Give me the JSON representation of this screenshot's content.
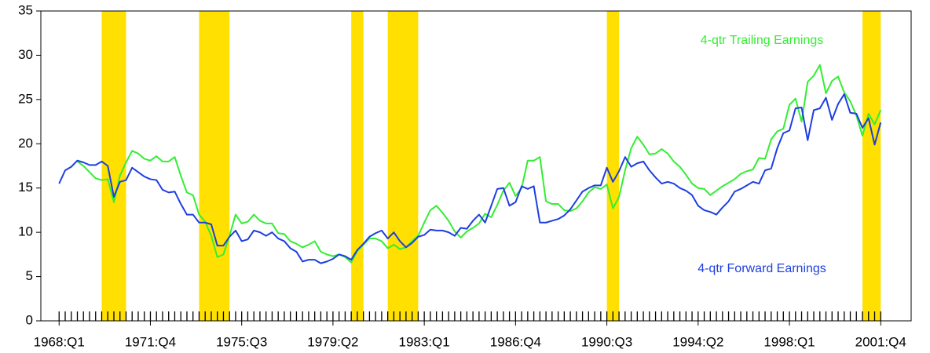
{
  "chart_data": {
    "type": "line",
    "x": [
      1968,
      1968.25,
      1968.5,
      1968.75,
      1969,
      1969.25,
      1969.5,
      1969.75,
      1970,
      1970.25,
      1970.5,
      1970.75,
      1971,
      1971.25,
      1971.5,
      1971.75,
      1972,
      1972.25,
      1972.5,
      1972.75,
      1973,
      1973.25,
      1973.5,
      1973.75,
      1974,
      1974.25,
      1974.5,
      1974.75,
      1975,
      1975.25,
      1975.5,
      1975.75,
      1976,
      1976.25,
      1976.5,
      1976.75,
      1977,
      1977.25,
      1977.5,
      1977.75,
      1978,
      1978.25,
      1978.5,
      1978.75,
      1979,
      1979.25,
      1979.5,
      1979.75,
      1980,
      1980.25,
      1980.5,
      1980.75,
      1981,
      1981.25,
      1981.5,
      1981.75,
      1982,
      1982.25,
      1982.5,
      1982.75,
      1983,
      1983.25,
      1983.5,
      1983.75,
      1984,
      1984.25,
      1984.5,
      1984.75,
      1985,
      1985.25,
      1985.5,
      1985.75,
      1986,
      1986.25,
      1986.5,
      1986.75,
      1987,
      1987.25,
      1987.5,
      1987.75,
      1988,
      1988.25,
      1988.5,
      1988.75,
      1989,
      1989.25,
      1989.5,
      1989.75,
      1990,
      1990.25,
      1990.5,
      1990.75,
      1991,
      1991.25,
      1991.5,
      1991.75,
      1992,
      1992.25,
      1992.5,
      1992.75,
      1993,
      1993.25,
      1993.5,
      1993.75,
      1994,
      1994.25,
      1994.5,
      1994.75,
      1995,
      1995.25,
      1995.5,
      1995.75,
      1996,
      1996.25,
      1996.5,
      1996.75,
      1997,
      1997.25,
      1997.5,
      1997.75,
      1998,
      1998.25,
      1998.5,
      1998.75,
      1999,
      1999.25,
      1999.5,
      1999.75,
      2000,
      2000.25,
      2000.5,
      2000.75,
      2001,
      2001.25,
      2001.5,
      2001.75
    ],
    "series": [
      {
        "name": "4-qtr Trailing Earnings",
        "color": "#33ee33",
        "values": [
          null,
          null,
          null,
          18.0,
          17.5,
          16.8,
          16.1,
          15.9,
          16.0,
          13.4,
          16.4,
          17.9,
          19.2,
          18.9,
          18.3,
          18.1,
          18.6,
          18.0,
          18.0,
          18.5,
          16.4,
          14.5,
          14.2,
          12.0,
          11.2,
          9.6,
          7.2,
          7.5,
          9.6,
          12.0,
          11.0,
          11.2,
          12.0,
          11.3,
          11.0,
          11.0,
          9.9,
          9.8,
          9.0,
          8.7,
          8.3,
          8.6,
          9.0,
          7.8,
          7.5,
          7.3,
          7.5,
          7.2,
          6.6,
          7.9,
          8.6,
          9.3,
          9.3,
          9.0,
          8.2,
          8.6,
          8.1,
          8.3,
          9.0,
          9.6,
          11.1,
          12.5,
          13.0,
          12.2,
          11.3,
          10.1,
          9.4,
          10.1,
          10.5,
          11.0,
          12.1,
          11.7,
          13.1,
          14.7,
          15.6,
          14.1,
          15.0,
          18.1,
          18.1,
          18.5,
          13.5,
          13.2,
          13.2,
          12.5,
          12.4,
          12.7,
          13.5,
          14.5,
          15.1,
          14.9,
          15.4,
          12.7,
          14.0,
          17.0,
          19.5,
          20.8,
          19.9,
          18.8,
          18.9,
          19.4,
          18.9,
          18.0,
          17.4,
          16.5,
          15.5,
          15.0,
          14.9,
          14.2,
          14.7,
          15.2,
          15.6,
          16.0,
          16.6,
          16.9,
          17.1,
          18.4,
          18.3,
          20.5,
          21.4,
          21.7,
          24.4,
          25.1,
          22.5,
          27.0,
          27.7,
          28.9,
          25.7,
          27.1,
          27.6,
          25.8,
          24.8,
          23.2,
          20.9,
          23.4,
          22.2,
          23.8
        ]
      },
      {
        "name": "4-qtr Forward Earnings",
        "color": "#1e3fe0",
        "values": [
          15.5,
          17.0,
          17.4,
          18.1,
          17.9,
          17.6,
          17.6,
          18.0,
          17.5,
          14.0,
          15.7,
          15.9,
          17.3,
          16.8,
          16.3,
          16.0,
          15.9,
          14.8,
          14.5,
          14.6,
          13.2,
          12.0,
          12.0,
          11.1,
          11.1,
          10.9,
          8.5,
          8.5,
          9.5,
          10.2,
          9.0,
          9.2,
          10.2,
          10.0,
          9.6,
          10.0,
          9.3,
          9.0,
          8.2,
          7.8,
          6.7,
          6.9,
          6.9,
          6.5,
          6.7,
          7.0,
          7.5,
          7.3,
          6.9,
          8.0,
          8.7,
          9.5,
          9.9,
          10.2,
          9.3,
          10.0,
          9.0,
          8.3,
          8.8,
          9.5,
          9.7,
          10.3,
          10.2,
          10.2,
          10.0,
          9.6,
          10.5,
          10.4,
          11.3,
          12.0,
          11.1,
          13.0,
          14.9,
          15.0,
          13.0,
          13.4,
          15.2,
          14.9,
          15.2,
          11.1,
          11.1,
          11.3,
          11.5,
          11.9,
          12.6,
          13.6,
          14.6,
          15.0,
          15.3,
          15.3,
          17.3,
          15.7,
          16.9,
          18.5,
          17.4,
          17.8,
          18.0,
          17.0,
          16.2,
          15.5,
          15.7,
          15.5,
          15.0,
          14.7,
          14.2,
          13.0,
          12.5,
          12.3,
          12.0,
          12.8,
          13.5,
          14.6,
          14.9,
          15.3,
          15.7,
          15.5,
          17.0,
          17.2,
          19.5,
          21.2,
          21.5,
          24.0,
          24.1,
          20.4,
          23.8,
          24.0,
          25.2,
          22.7,
          24.5,
          25.6,
          23.5,
          23.4,
          21.8,
          22.9,
          19.9,
          22.4
        ]
      }
    ],
    "shaded_periods": [
      [
        1969.75,
        1970.75
      ],
      [
        1973.75,
        1975.0
      ],
      [
        1980.0,
        1980.5
      ],
      [
        1981.5,
        1982.75
      ],
      [
        1990.5,
        1991.0
      ],
      [
        2001.0,
        2001.75
      ]
    ],
    "shade_color": "#ffe000",
    "xlim": [
      1967.25,
      2003
    ],
    "xticks": [
      {
        "value": 1968,
        "label": "1968:Q1"
      },
      {
        "value": 1971.75,
        "label": "1971:Q4"
      },
      {
        "value": 1975.5,
        "label": "1975:Q3"
      },
      {
        "value": 1979.25,
        "label": "1979:Q2"
      },
      {
        "value": 1983,
        "label": "1983:Q1"
      },
      {
        "value": 1986.75,
        "label": "1986:Q4"
      },
      {
        "value": 1990.5,
        "label": "1990:Q3"
      },
      {
        "value": 1994.25,
        "label": "1994:Q2"
      },
      {
        "value": 1998,
        "label": "1998:Q1"
      },
      {
        "value": 2001.75,
        "label": "2001:Q4"
      }
    ],
    "ylim": [
      0,
      35
    ],
    "yticks": [
      0,
      5,
      10,
      15,
      20,
      25,
      30,
      35
    ]
  }
}
